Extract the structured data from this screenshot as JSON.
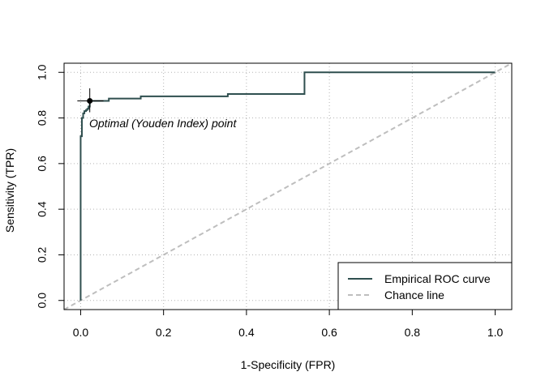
{
  "chart_data": {
    "type": "line",
    "title": "",
    "xlabel": "1-Specificity (FPR)",
    "ylabel": "Sensitivity (TPR)",
    "xlim": [
      -0.04,
      1.04
    ],
    "ylim": [
      -0.04,
      1.04
    ],
    "x_ticks": [
      0,
      0.2,
      0.4,
      0.6,
      0.8,
      1
    ],
    "y_ticks": [
      0,
      0.2,
      0.4,
      0.6,
      0.8,
      1
    ],
    "x_tick_labels": [
      "0.0",
      "0.2",
      "0.4",
      "0.6",
      "0.8",
      "1.0"
    ],
    "y_tick_labels": [
      "0.0",
      "0.2",
      "0.4",
      "0.6",
      "0.8",
      "1.0"
    ],
    "grid": true,
    "legend_position": "bottom-right",
    "series": [
      {
        "name": "Empirical ROC curve",
        "color": "#2f4f4f",
        "style": "solid-step",
        "points": [
          [
            0,
            0
          ],
          [
            0,
            0.5
          ],
          [
            0,
            0.72
          ],
          [
            0.003,
            0.72
          ],
          [
            0.003,
            0.8
          ],
          [
            0.006,
            0.8
          ],
          [
            0.006,
            0.82
          ],
          [
            0.009,
            0.82
          ],
          [
            0.009,
            0.83
          ],
          [
            0.013,
            0.83
          ],
          [
            0.013,
            0.835
          ],
          [
            0.016,
            0.835
          ],
          [
            0.016,
            0.84
          ],
          [
            0.019,
            0.84
          ],
          [
            0.019,
            0.85
          ],
          [
            0.022,
            0.85
          ],
          [
            0.022,
            0.875
          ],
          [
            0.068,
            0.875
          ],
          [
            0.068,
            0.885
          ],
          [
            0.145,
            0.885
          ],
          [
            0.145,
            0.895
          ],
          [
            0.355,
            0.895
          ],
          [
            0.355,
            0.905
          ],
          [
            0.54,
            0.905
          ],
          [
            0.54,
            1.0
          ],
          [
            1.0,
            1.0
          ]
        ]
      },
      {
        "name": "Chance line",
        "color": "#bebebe",
        "style": "dashed",
        "points": [
          [
            -0.04,
            -0.04
          ],
          [
            1.04,
            1.04
          ]
        ]
      }
    ],
    "optimal_point": {
      "x": 0.022,
      "y": 0.875,
      "label": "Optimal (Youden Index) point",
      "x_ci": [
        -0.008,
        0.055
      ],
      "y_ci": [
        0.825,
        0.93
      ]
    }
  }
}
